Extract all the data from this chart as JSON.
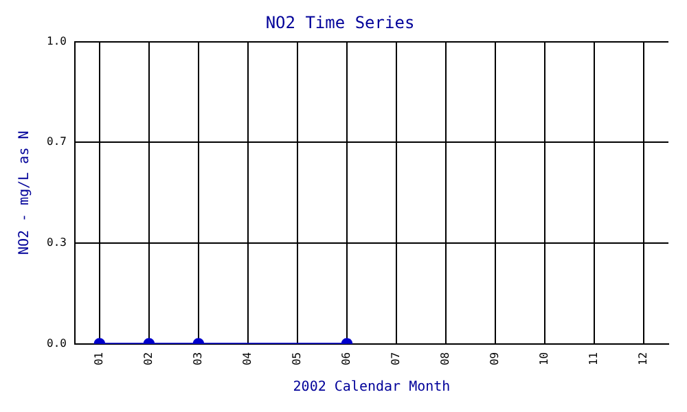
{
  "chart_data": {
    "type": "line",
    "title": "NO2 Time Series",
    "xlabel": "2002 Calendar Month",
    "ylabel": "NO2 - mg/L as N",
    "categories": [
      "01",
      "02",
      "03",
      "04",
      "05",
      "06",
      "07",
      "08",
      "09",
      "10",
      "11",
      "12"
    ],
    "series": [
      {
        "color": "#0000cc",
        "values": [
          0,
          0,
          0,
          null,
          null,
          0,
          null,
          null,
          null,
          null,
          null,
          null
        ]
      }
    ],
    "ylim": [
      0,
      1
    ],
    "yticks": [
      {
        "value": 0,
        "label": "0.0"
      },
      {
        "value": 0.333,
        "label": "0.3"
      },
      {
        "value": 0.667,
        "label": "0.7"
      },
      {
        "value": 1,
        "label": "1.0"
      }
    ],
    "grid": true,
    "marker": "circle",
    "legend": false
  }
}
